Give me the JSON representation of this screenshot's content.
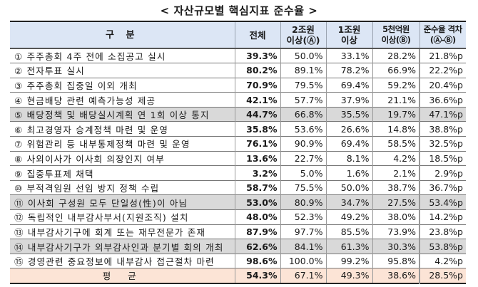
{
  "title": "< 자산규모별 핵심지표 준수율 >",
  "table": {
    "headers": {
      "category": "구 분",
      "total": "전체",
      "over2t_line1": "2조원",
      "over2t_line2": "이상(Ⓐ)",
      "over1t_line1": "1조원",
      "over1t_line2": "이상",
      "over500b_line1": "5천억원",
      "over500b_line2": "이상(Ⓑ)",
      "gap_line1": "준수율 격차",
      "gap_line2": "(Ⓐ-Ⓑ)"
    },
    "rows": [
      {
        "label": "① 주주총회 4주 전에 소집공고 실시",
        "total": "39.3%",
        "over2t": "50.0%",
        "over1t": "33.1%",
        "over500b": "28.2%",
        "gap": "21.8%p",
        "shaded": false
      },
      {
        "label": "② 전자투표 실시",
        "total": "80.2%",
        "over2t": "89.1%",
        "over1t": "78.2%",
        "over500b": "66.9%",
        "gap": "22.2%p",
        "shaded": false
      },
      {
        "label": "③ 주주총회 집중일 이외 개최",
        "total": "70.9%",
        "over2t": "79.5%",
        "over1t": "69.4%",
        "over500b": "59.2%",
        "gap": "20.4%p",
        "shaded": false
      },
      {
        "label": "④ 현금배당 관련 예측가능성 제공",
        "total": "42.1%",
        "over2t": "57.7%",
        "over1t": "37.9%",
        "over500b": "21.1%",
        "gap": "36.6%p",
        "shaded": false
      },
      {
        "label": "⑤ 배당정책 및 배당실시계획 연 1회 이상 통지",
        "total": "44.7%",
        "over2t": "66.8%",
        "over1t": "35.5%",
        "over500b": "19.7%",
        "gap": "47.1%p",
        "shaded": true
      },
      {
        "label": "⑥ 최고경영자 승계정책 마련 및 운영",
        "total": "35.8%",
        "over2t": "53.6%",
        "over1t": "26.6%",
        "over500b": "14.8%",
        "gap": "38.8%p",
        "shaded": false
      },
      {
        "label": "⑦ 위험관리 등 내부통제정책 마련 및 운영",
        "total": "76.1%",
        "over2t": "90.9%",
        "over1t": "69.4%",
        "over500b": "58.5%",
        "gap": "32.5%p",
        "shaded": false
      },
      {
        "label": "⑧ 사외이사가 이사회 의장인지 여부",
        "total": "13.6%",
        "over2t": "22.7%",
        "over1t": "8.1%",
        "over500b": "4.2%",
        "gap": "18.5%p",
        "shaded": false
      },
      {
        "label": "⑨ 집중투표제 채택",
        "total": "3.2%",
        "over2t": "5.0%",
        "over1t": "1.6%",
        "over500b": "2.1%",
        "gap": "2.9%p",
        "shaded": false
      },
      {
        "label": "⑩ 부적격임원 선임 방지 정책 수립",
        "total": "58.7%",
        "over2t": "75.5%",
        "over1t": "50.0%",
        "over500b": "38.7%",
        "gap": "36.7%p",
        "shaded": false
      },
      {
        "label": "⑪ 이사회 구성원 모두 단일성(性)이 아님",
        "total": "53.0%",
        "over2t": "80.9%",
        "over1t": "34.7%",
        "over500b": "27.5%",
        "gap": "53.4%p",
        "shaded": true
      },
      {
        "label": "⑫ 독립적인 내부감사부서(지원조직) 설치",
        "total": "48.0%",
        "over2t": "52.3%",
        "over1t": "49.2%",
        "over500b": "38.0%",
        "gap": "14.2%p",
        "shaded": false
      },
      {
        "label": "⑬ 내부감사기구에 회계 또는 재무전문가 존재",
        "total": "87.9%",
        "over2t": "97.7%",
        "over1t": "85.5%",
        "over500b": "73.9%",
        "gap": "23.8%p",
        "shaded": false
      },
      {
        "label": "⑭ 내부감사기구가 외부감사인과 분기별 회의 개최",
        "total": "62.6%",
        "over2t": "84.1%",
        "over1t": "61.3%",
        "over500b": "30.3%",
        "gap": "53.8%p",
        "shaded": true
      },
      {
        "label": "⑮ 경영관련 중요정보에 내부감사 접근절차 마련",
        "total": "98.6%",
        "over2t": "100.0%",
        "over1t": "99.2%",
        "over500b": "95.8%",
        "gap": "4.2%p",
        "shaded": false
      }
    ],
    "average": {
      "label": "평 균",
      "total": "54.3%",
      "over2t": "67.1%",
      "over1t": "49.3%",
      "over500b": "38.6%",
      "gap": "28.5%p"
    }
  },
  "colors": {
    "header_bg": "#dce6f5",
    "shaded_row_bg": "#d9d9d9",
    "average_row_bg": "#fce4d6"
  },
  "chart_data": {
    "type": "table",
    "title": "< 자산규모별 핵심지표 준수율 >",
    "columns": [
      "구 분",
      "전체",
      "2조원 이상(Ⓐ)",
      "1조원 이상",
      "5천억원 이상(Ⓑ)",
      "준수율 격차(Ⓐ-Ⓑ)"
    ],
    "categories": [
      "주주총회 4주 전에 소집공고 실시",
      "전자투표 실시",
      "주주총회 집중일 이외 개최",
      "현금배당 관련 예측가능성 제공",
      "배당정책 및 배당실시계획 연 1회 이상 통지",
      "최고경영자 승계정책 마련 및 운영",
      "위험관리 등 내부통제정책 마련 및 운영",
      "사외이사가 이사회 의장인지 여부",
      "집중투표제 채택",
      "부적격임원 선임 방지 정책 수립",
      "이사회 구성원 모두 단일성(性)이 아님",
      "독립적인 내부감사부서(지원조직) 설치",
      "내부감사기구에 회계 또는 재무전문가 존재",
      "내부감사기구가 외부감사인과 분기별 회의 개최",
      "경영관련 중요정보에 내부감사 접근절차 마련",
      "평균"
    ],
    "series": [
      {
        "name": "전체",
        "values": [
          39.3,
          80.2,
          70.9,
          42.1,
          44.7,
          35.8,
          76.1,
          13.6,
          3.2,
          58.7,
          53.0,
          48.0,
          87.9,
          62.6,
          98.6,
          54.3
        ]
      },
      {
        "name": "2조원 이상(Ⓐ)",
        "values": [
          50.0,
          89.1,
          79.5,
          57.7,
          66.8,
          53.6,
          90.9,
          22.7,
          5.0,
          75.5,
          80.9,
          52.3,
          97.7,
          84.1,
          100.0,
          67.1
        ]
      },
      {
        "name": "1조원 이상",
        "values": [
          33.1,
          78.2,
          69.4,
          37.9,
          35.5,
          26.6,
          69.4,
          8.1,
          1.6,
          50.0,
          34.7,
          49.2,
          85.5,
          61.3,
          99.2,
          49.3
        ]
      },
      {
        "name": "5천억원 이상(Ⓑ)",
        "values": [
          28.2,
          66.9,
          59.2,
          21.1,
          19.7,
          14.8,
          58.5,
          4.2,
          2.1,
          38.7,
          27.5,
          38.0,
          73.9,
          30.3,
          95.8,
          38.6
        ]
      },
      {
        "name": "준수율 격차(Ⓐ-Ⓑ) %p",
        "values": [
          21.8,
          22.2,
          20.4,
          36.6,
          47.1,
          38.8,
          32.5,
          18.5,
          2.9,
          36.7,
          53.4,
          14.2,
          23.8,
          53.8,
          4.2,
          28.5
        ]
      }
    ]
  }
}
